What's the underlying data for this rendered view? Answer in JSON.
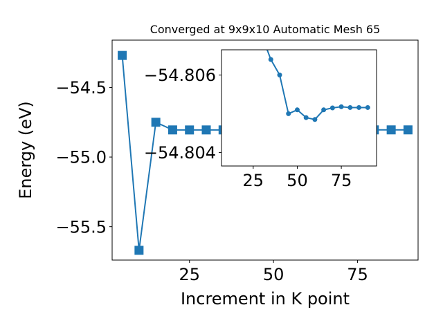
{
  "chart_data": [
    {
      "type": "line",
      "title": "Converged at 9x9x10 Automatic Mesh 65",
      "xlabel": "Increment in K point",
      "ylabel": "Energy (eV)",
      "xlim": [
        2,
        93
      ],
      "ylim": [
        -55.74,
        -54.16
      ],
      "xticks": [
        25,
        50,
        75
      ],
      "xtick_labels": [
        "25",
        "50",
        "75"
      ],
      "yticks": [
        -54.5,
        -55.0,
        -55.5
      ],
      "ytick_labels": [
        "−54.5",
        "−55.0",
        "−55.5"
      ],
      "grid": false,
      "marker": "square",
      "color": "#1f77b4",
      "series": [
        {
          "x": [
            5,
            10,
            15,
            20,
            25,
            30,
            35,
            40,
            45,
            50,
            55,
            60,
            65,
            70,
            75,
            80,
            85,
            90
          ],
          "y": [
            -54.27,
            -55.67,
            -54.75,
            -54.805,
            -54.8053,
            -54.8051,
            -54.805,
            -54.8048,
            -54.8049,
            -54.805,
            -54.8051,
            -54.8051,
            -54.8049,
            -54.8048,
            -54.8048,
            -54.8048,
            -54.8048,
            -54.8048
          ]
        }
      ]
    },
    {
      "type": "line",
      "inset": true,
      "title": "",
      "xlabel": "",
      "ylabel": "",
      "xlim": [
        7,
        95
      ],
      "ylim": [
        -54.80365,
        -54.80665
      ],
      "xticks": [
        25,
        50,
        75
      ],
      "xtick_labels": [
        "25",
        "50",
        "75"
      ],
      "yticks": [
        -54.806,
        -54.804
      ],
      "ytick_labels": [
        "−54.806",
        "−54.804"
      ],
      "grid": false,
      "marker": "circle",
      "color": "#1f77b4",
      "series": [
        {
          "x": [
            30,
            35,
            40,
            45,
            50,
            55,
            60,
            65,
            70,
            75,
            80,
            85,
            90
          ],
          "y": [
            -54.807,
            -54.8064,
            -54.806,
            -54.805,
            -54.8051,
            -54.8049,
            -54.80485,
            -54.8051,
            -54.80515,
            -54.80518,
            -54.80516,
            -54.80516,
            -54.80516
          ]
        }
      ]
    }
  ]
}
